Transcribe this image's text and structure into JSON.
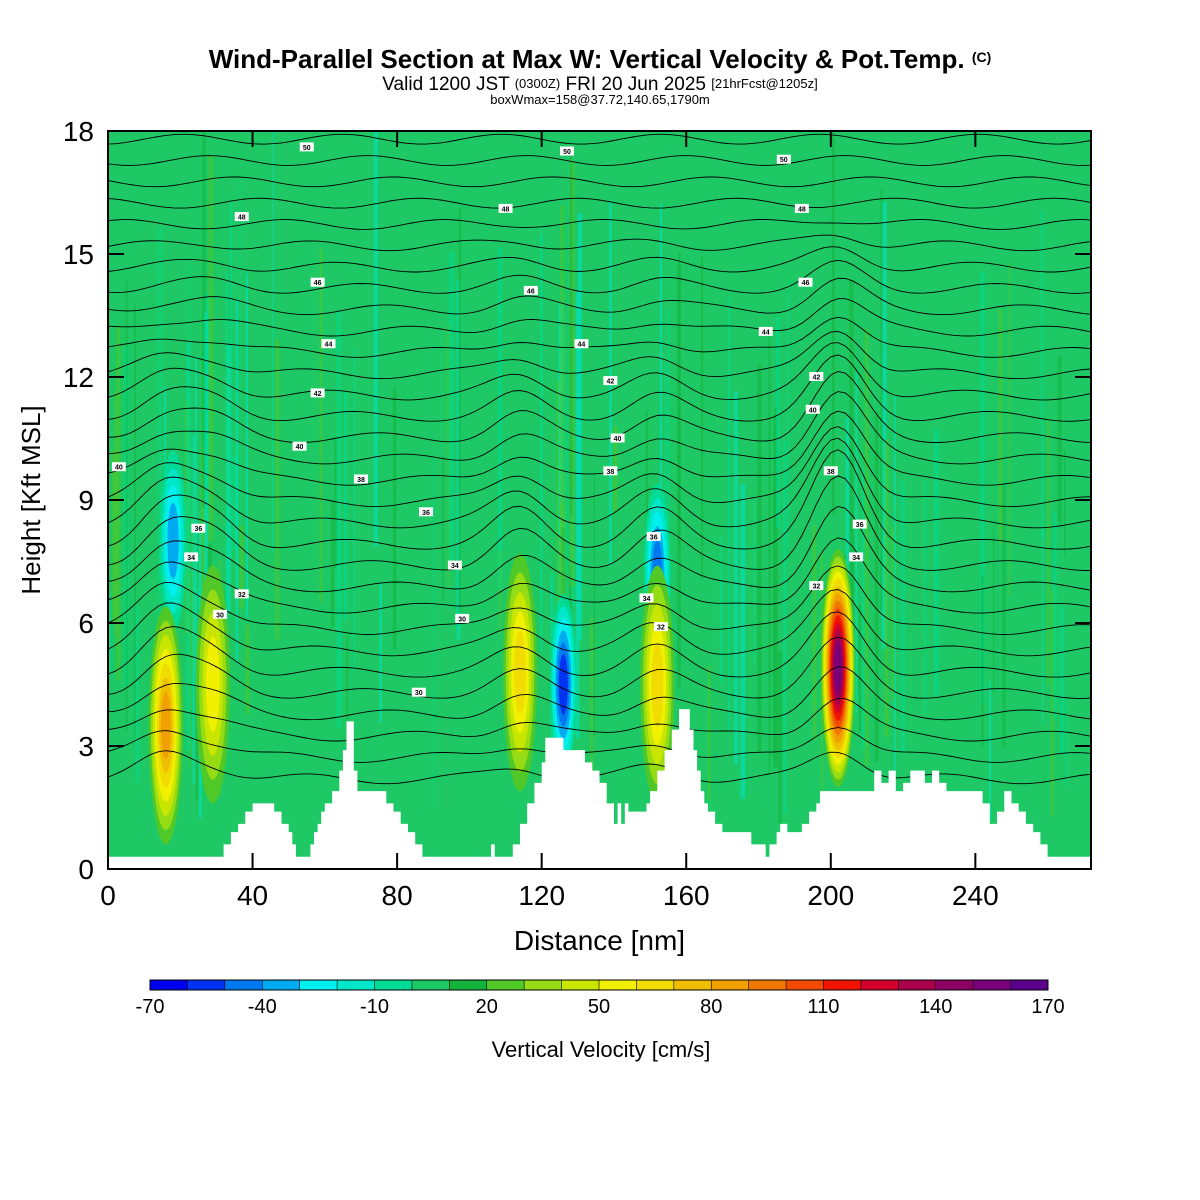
{
  "header": {
    "title": "Wind-Parallel Section at Max W: Vertical Velocity & Pot.Temp.",
    "title_mark": "(C)",
    "valid_prefix": "Valid 1200 JST",
    "valid_utc": "(0300Z)",
    "valid_date": "FRI 20 Jun 2025",
    "forecast_info": "[21hrFcst@1205z]",
    "box_info": "boxWmax=158@37.72,140.65,1790m"
  },
  "colors": {
    "background_fill": "#1ec864",
    "terrain": "#ffffff",
    "frame": "#000000"
  },
  "colorbar": {
    "label": "Vertical Velocity [cm/s]",
    "tick_labels": [
      "-70",
      "-40",
      "-10",
      "20",
      "50",
      "80",
      "110",
      "140",
      "170"
    ],
    "colors": [
      "#0000f0",
      "#0032f0",
      "#0078f0",
      "#00aaf0",
      "#00f0f0",
      "#00e6c8",
      "#00dc96",
      "#1ec864",
      "#14b43c",
      "#50c828",
      "#96dc14",
      "#c8e600",
      "#f0f000",
      "#f0dc00",
      "#f0be00",
      "#f0a000",
      "#f07800",
      "#f04b00",
      "#f01400",
      "#d2002d",
      "#aa004b",
      "#8c0064",
      "#780078",
      "#5a008c"
    ],
    "min": -70,
    "step": 10
  },
  "chart_data": {
    "type": "heatmap",
    "title": "Wind-Parallel Section at Max W: Vertical Velocity & Pot.Temp.",
    "xlabel": "Distance [nm]",
    "ylabel": "Height [Kft MSL]",
    "xlim": [
      0,
      272
    ],
    "ylim": [
      0,
      18
    ],
    "x_ticks": [
      "0",
      "40",
      "80",
      "120",
      "160",
      "200",
      "240"
    ],
    "y_ticks": [
      "0",
      "3",
      "6",
      "9",
      "12",
      "15",
      "18"
    ],
    "colorbar_label": "Vertical Velocity [cm/s]",
    "max_vertical_velocity_cm_s": 158,
    "terrain_height_kft": [
      [
        0,
        0.3
      ],
      [
        30,
        0.3
      ],
      [
        32,
        0.6
      ],
      [
        34,
        0.9
      ],
      [
        36,
        1.1
      ],
      [
        38,
        1.4
      ],
      [
        40,
        1.6
      ],
      [
        44,
        1.6
      ],
      [
        46,
        1.4
      ],
      [
        48,
        1.1
      ],
      [
        50,
        0.9
      ],
      [
        51,
        0.6
      ],
      [
        52,
        0.3
      ],
      [
        54,
        0.3
      ],
      [
        56,
        0.6
      ],
      [
        57,
        0.9
      ],
      [
        58,
        1.1
      ],
      [
        59,
        1.4
      ],
      [
        60,
        1.6
      ],
      [
        62,
        1.9
      ],
      [
        64,
        2.4
      ],
      [
        65,
        2.9
      ],
      [
        66,
        3.6
      ],
      [
        67,
        3.6
      ],
      [
        68,
        2.4
      ],
      [
        69,
        1.9
      ],
      [
        70,
        1.9
      ],
      [
        76,
        1.9
      ],
      [
        77,
        1.6
      ],
      [
        79,
        1.4
      ],
      [
        81,
        1.1
      ],
      [
        83,
        0.9
      ],
      [
        85,
        0.6
      ],
      [
        87,
        0.3
      ],
      [
        105,
        0.3
      ],
      [
        106,
        0.6
      ],
      [
        107,
        0.3
      ],
      [
        110,
        0.3
      ],
      [
        112,
        0.6
      ],
      [
        114,
        1.1
      ],
      [
        116,
        1.6
      ],
      [
        118,
        2.1
      ],
      [
        120,
        2.6
      ],
      [
        121,
        3.2
      ],
      [
        124,
        3.2
      ],
      [
        126,
        2.9
      ],
      [
        130,
        2.9
      ],
      [
        132,
        2.6
      ],
      [
        134,
        2.4
      ],
      [
        136,
        2.1
      ],
      [
        138,
        1.6
      ],
      [
        140,
        1.1
      ],
      [
        141,
        1.6
      ],
      [
        142,
        1.1
      ],
      [
        143,
        1.6
      ],
      [
        144,
        1.4
      ],
      [
        147,
        1.4
      ],
      [
        149,
        1.6
      ],
      [
        150,
        1.9
      ],
      [
        152,
        2.4
      ],
      [
        154,
        2.9
      ],
      [
        156,
        3.4
      ],
      [
        158,
        3.9
      ],
      [
        160,
        3.9
      ],
      [
        161,
        3.4
      ],
      [
        162,
        2.9
      ],
      [
        163,
        2.4
      ],
      [
        164,
        1.9
      ],
      [
        165,
        1.6
      ],
      [
        166,
        1.4
      ],
      [
        168,
        1.1
      ],
      [
        170,
        0.9
      ],
      [
        176,
        0.9
      ],
      [
        178,
        0.6
      ],
      [
        181,
        0.6
      ],
      [
        182,
        0.3
      ],
      [
        183,
        0.6
      ],
      [
        185,
        0.9
      ],
      [
        186,
        1.1
      ],
      [
        188,
        0.9
      ],
      [
        190,
        0.9
      ],
      [
        192,
        1.1
      ],
      [
        194,
        1.4
      ],
      [
        196,
        1.6
      ],
      [
        197,
        1.9
      ],
      [
        210,
        1.9
      ],
      [
        212,
        2.4
      ],
      [
        214,
        2.1
      ],
      [
        216,
        2.4
      ],
      [
        218,
        1.9
      ],
      [
        220,
        2.1
      ],
      [
        222,
        2.4
      ],
      [
        224,
        2.4
      ],
      [
        226,
        2.1
      ],
      [
        228,
        2.4
      ],
      [
        230,
        2.1
      ],
      [
        232,
        1.9
      ],
      [
        240,
        1.9
      ],
      [
        242,
        1.6
      ],
      [
        244,
        1.1
      ],
      [
        246,
        1.4
      ],
      [
        248,
        1.9
      ],
      [
        250,
        1.6
      ],
      [
        252,
        1.4
      ],
      [
        254,
        1.1
      ],
      [
        256,
        0.9
      ],
      [
        258,
        0.6
      ],
      [
        260,
        0.3
      ],
      [
        272,
        0.3
      ]
    ],
    "contour_labels": [
      {
        "text": "50",
        "x": 55,
        "y": 17.6
      },
      {
        "text": "50",
        "x": 127,
        "y": 17.5
      },
      {
        "text": "50",
        "x": 187,
        "y": 17.3
      },
      {
        "text": "48",
        "x": 37,
        "y": 15.9
      },
      {
        "text": "48",
        "x": 110,
        "y": 16.1
      },
      {
        "text": "48",
        "x": 192,
        "y": 16.1
      },
      {
        "text": "46",
        "x": 58,
        "y": 14.3
      },
      {
        "text": "46",
        "x": 117,
        "y": 14.1
      },
      {
        "text": "46",
        "x": 193,
        "y": 14.3
      },
      {
        "text": "44",
        "x": 61,
        "y": 12.8
      },
      {
        "text": "44",
        "x": 131,
        "y": 12.8
      },
      {
        "text": "44",
        "x": 182,
        "y": 13.1
      },
      {
        "text": "42",
        "x": 58,
        "y": 11.6
      },
      {
        "text": "42",
        "x": 139,
        "y": 11.9
      },
      {
        "text": "42",
        "x": 196,
        "y": 12.0
      },
      {
        "text": "40",
        "x": 3,
        "y": 9.8
      },
      {
        "text": "40",
        "x": 53,
        "y": 10.3
      },
      {
        "text": "40",
        "x": 141,
        "y": 10.5
      },
      {
        "text": "40",
        "x": 195,
        "y": 11.2
      },
      {
        "text": "38",
        "x": 70,
        "y": 9.5
      },
      {
        "text": "38",
        "x": 139,
        "y": 9.7
      },
      {
        "text": "38",
        "x": 200,
        "y": 9.7
      },
      {
        "text": "36",
        "x": 25,
        "y": 8.3
      },
      {
        "text": "36",
        "x": 88,
        "y": 8.7
      },
      {
        "text": "36",
        "x": 151,
        "y": 8.1
      },
      {
        "text": "36",
        "x": 208,
        "y": 8.4
      },
      {
        "text": "34",
        "x": 23,
        "y": 7.6
      },
      {
        "text": "34",
        "x": 96,
        "y": 7.4
      },
      {
        "text": "34",
        "x": 149,
        "y": 6.6
      },
      {
        "text": "34",
        "x": 207,
        "y": 7.6
      },
      {
        "text": "32",
        "x": 37,
        "y": 6.7
      },
      {
        "text": "32",
        "x": 153,
        "y": 5.9
      },
      {
        "text": "32",
        "x": 196,
        "y": 6.9
      },
      {
        "text": "30",
        "x": 31,
        "y": 6.2
      },
      {
        "text": "30",
        "x": 98,
        "y": 6.1
      },
      {
        "text": "30",
        "x": 86,
        "y": 4.3
      }
    ],
    "updrafts": [
      {
        "x": 16,
        "y": 3.5,
        "peak": 80
      },
      {
        "x": 29,
        "y": 4.5,
        "peak": 50
      },
      {
        "x": 114,
        "y": 4.8,
        "peak": 60
      },
      {
        "x": 152,
        "y": 4.5,
        "peak": 60
      },
      {
        "x": 202,
        "y": 4.9,
        "peak": 158
      }
    ],
    "downdrafts": [
      {
        "x": 18,
        "y": 8.0,
        "min": -40
      },
      {
        "x": 126,
        "y": 4.5,
        "min": -60
      },
      {
        "x": 152,
        "y": 7.2,
        "min": -50
      }
    ]
  }
}
